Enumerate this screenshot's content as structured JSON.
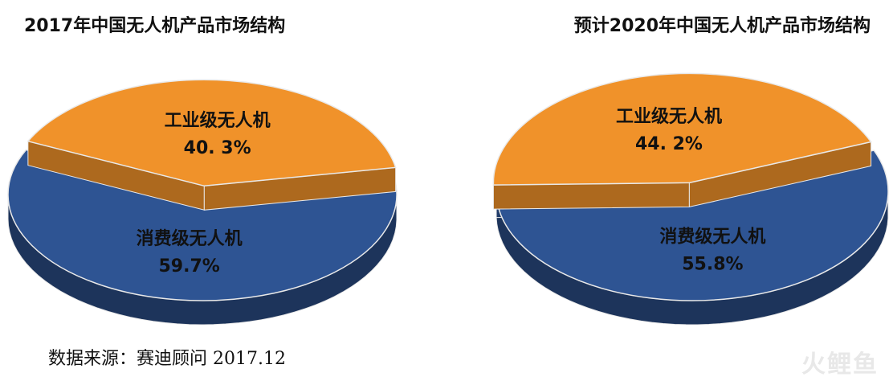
{
  "chart_data": [
    {
      "type": "pie",
      "title": "2017年中国无人机产品市场结构",
      "slices": [
        {
          "label": "消费级无人机",
          "value": 59.7,
          "display": "59.7%",
          "color": "#2e5493"
        },
        {
          "label": "工业级无人机",
          "value": 40.3,
          "display": "40. 3%",
          "color": "#f0922a"
        }
      ]
    },
    {
      "type": "pie",
      "title": "预计2020年中国无人机产品市场结构",
      "slices": [
        {
          "label": "消费级无人机",
          "value": 55.8,
          "display": "55.8%",
          "color": "#2e5493"
        },
        {
          "label": "工业级无人机",
          "value": 44.2,
          "display": "44. 2%",
          "color": "#f0922a"
        }
      ]
    }
  ],
  "source": "数据来源：赛迪顾问 2017.12",
  "watermark": "火鲤鱼"
}
